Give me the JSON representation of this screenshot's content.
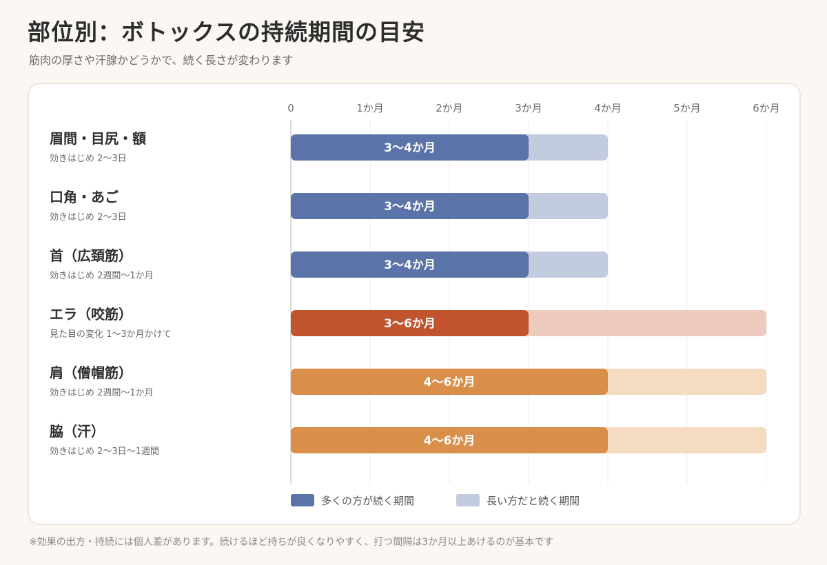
{
  "title": "部位別：ボトックスの持続期間の目安",
  "subtitle": "筋肉の厚さや汗腺かどうかで、続く長さが変わります",
  "footnote": "※効果の出方・持続には個人差があります。続けるほど持ちが良くなりやすく、打つ間隔は3か月以上あけるのが基本です",
  "chart_data": {
    "type": "bar",
    "orientation": "horizontal",
    "stacked_range": true,
    "xlim": [
      0,
      6
    ],
    "x_ticks": [
      "0",
      "1か月",
      "2か月",
      "3か月",
      "4か月",
      "5か月",
      "6か月"
    ],
    "grid": true,
    "legend_position": "bottom",
    "legend": [
      {
        "label": "多くの方が続く期間",
        "color": "#5a73a8"
      },
      {
        "label": "長い方だと続く期間",
        "color": "#c3cbdf"
      }
    ],
    "rows": [
      {
        "name": "眉間・目尻・額",
        "note": "効きはじめ 2〜3日",
        "typical_end": 3,
        "max_end": 4,
        "label": "3〜4か月",
        "color": "#5a73a8",
        "light_color": "#c3cbdf"
      },
      {
        "name": "口角・あご",
        "note": "効きはじめ 2〜3日",
        "typical_end": 3,
        "max_end": 4,
        "label": "3〜4か月",
        "color": "#5a73a8",
        "light_color": "#c3cbdf"
      },
      {
        "name": "首（広頚筋）",
        "note": "効きはじめ 2週間〜1か月",
        "typical_end": 3,
        "max_end": 4,
        "label": "3〜4か月",
        "color": "#5a73a8",
        "light_color": "#c3cbdf"
      },
      {
        "name": "エラ（咬筋）",
        "note": "見た目の変化 1〜3か月かけて",
        "typical_end": 3,
        "max_end": 6,
        "label": "3〜6か月",
        "color": "#c1532f",
        "light_color": "#edcbbf"
      },
      {
        "name": "肩（僧帽筋）",
        "note": "効きはじめ 2週間〜1か月",
        "typical_end": 4,
        "max_end": 6,
        "label": "4〜6か月",
        "color": "#d98f4a",
        "light_color": "#f4dbc2"
      },
      {
        "name": "脇（汗）",
        "note": "効きはじめ 2〜3日〜1週間",
        "typical_end": 4,
        "max_end": 6,
        "label": "4〜6か月",
        "color": "#d98f4a",
        "light_color": "#f4dbc2"
      }
    ]
  }
}
